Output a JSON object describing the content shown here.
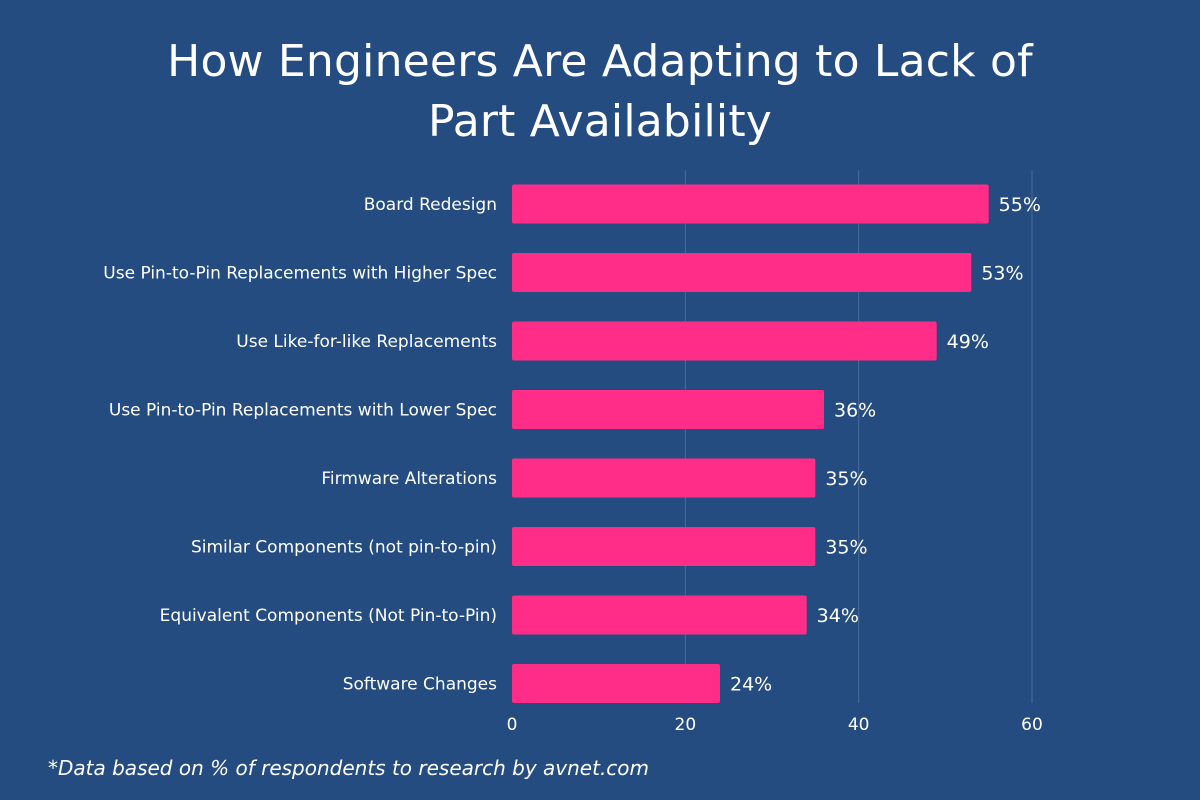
{
  "chart_data": {
    "type": "bar",
    "orientation": "horizontal",
    "title": "How Engineers Are Adapting to Lack of Part Availability",
    "categories": [
      "Board Redesign",
      "Use Pin-to-Pin Replacements with Higher Spec",
      "Use Like-for-like Replacements",
      "Use Pin-to-Pin Replacements with Lower Spec",
      "Firmware Alterations",
      "Similar Components (not pin-to-pin)",
      "Equivalent Components (Not Pin-to-Pin)",
      "Software Changes"
    ],
    "values": [
      55,
      53,
      49,
      36,
      35,
      35,
      34,
      24
    ],
    "value_labels": [
      "55%",
      "53%",
      "49%",
      "36%",
      "35%",
      "35%",
      "34%",
      "24%"
    ],
    "xlim": [
      0,
      60
    ],
    "xticks": [
      0,
      20,
      40,
      60
    ],
    "xtick_labels": [
      "0",
      "20",
      "40",
      "60"
    ],
    "grid": true,
    "xlabel": "",
    "ylabel": "",
    "colors": {
      "background": "#244c80",
      "bar": "#ff2d87",
      "text": "#ffffff",
      "grid": "#4a6c98"
    }
  },
  "footnote": "*Data based on % of respondents to research by avnet.com"
}
